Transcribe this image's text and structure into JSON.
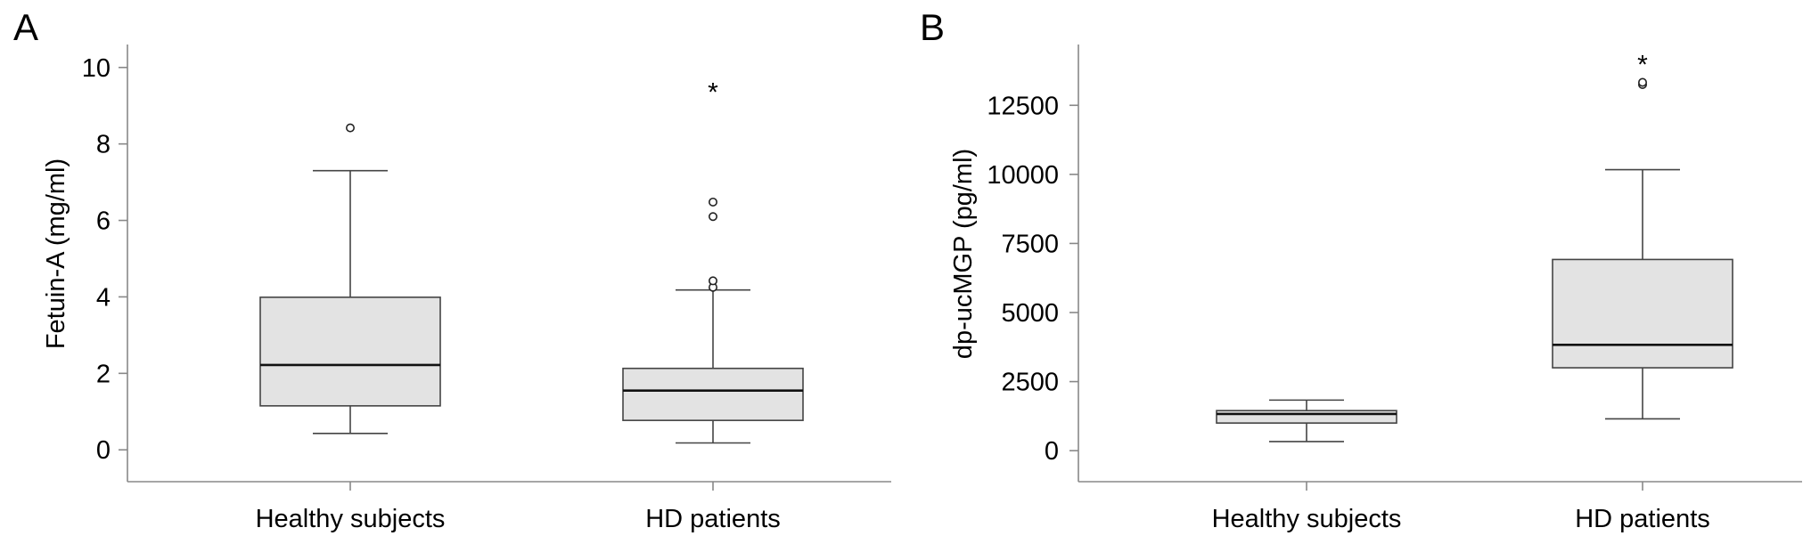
{
  "chart_data": [
    {
      "type": "box",
      "panel_label": "A",
      "ylabel": "Fetuin-A (mg/ml)",
      "ylim": [
        -0.6,
        10.6
      ],
      "yticks": [
        0,
        2,
        4,
        6,
        8,
        10
      ],
      "categories": [
        "Healthy subjects",
        "HD patients"
      ],
      "boxes": [
        {
          "category": "Healthy subjects",
          "whisker_low": 0.43,
          "q1": 1.15,
          "median": 2.22,
          "q3": 3.99,
          "whisker_high": 7.3,
          "outliers": [
            8.42
          ],
          "extremes": []
        },
        {
          "category": "HD patients",
          "whisker_low": 0.18,
          "q1": 0.77,
          "median": 1.55,
          "q3": 2.13,
          "whisker_high": 4.18,
          "outliers": [
            4.25,
            4.42,
            6.1,
            6.48
          ],
          "extremes": [
            9.45
          ]
        }
      ]
    },
    {
      "type": "box",
      "panel_label": "B",
      "ylabel": "dp-ucMGP (pg/ml)",
      "ylim": [
        -800,
        14700
      ],
      "yticks": [
        0,
        2500,
        5000,
        7500,
        10000,
        12500
      ],
      "categories": [
        "Healthy subjects",
        "HD patients"
      ],
      "boxes": [
        {
          "category": "Healthy subjects",
          "whisker_low": 330,
          "q1": 1000,
          "median": 1330,
          "q3": 1450,
          "whisker_high": 1830,
          "outliers": [],
          "extremes": []
        },
        {
          "category": "HD patients",
          "whisker_low": 1150,
          "q1": 3000,
          "median": 3830,
          "q3": 6920,
          "whisker_high": 10170,
          "outliers": [
            13250,
            13330
          ],
          "extremes": [
            14100
          ]
        }
      ]
    }
  ]
}
